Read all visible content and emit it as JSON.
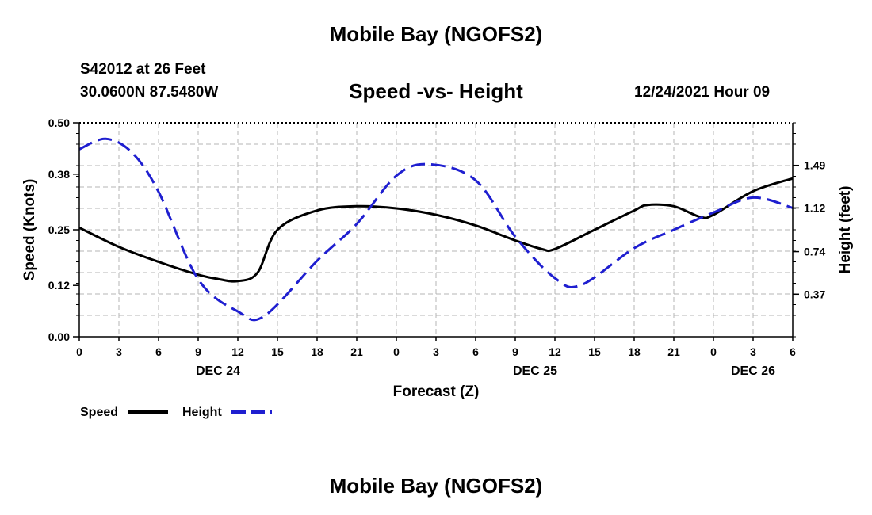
{
  "header": {
    "title": "Mobile Bay (NGOFS2)",
    "station": "S42012 at 26 Feet",
    "coords": "30.0600N  87.5480W",
    "subtitle": "Speed -vs- Height",
    "datetime": "12/24/2021 Hour 09",
    "bottom_title": "Mobile Bay (NGOFS2)"
  },
  "chart_data": {
    "type": "line",
    "title": "Speed -vs- Height",
    "xlabel": "Forecast (Z)",
    "ylabel": "Speed (Knots)",
    "y2label": "Height (feet)",
    "x_tick_labels": [
      "0",
      "3",
      "6",
      "9",
      "12",
      "15",
      "18",
      "21",
      "0",
      "3",
      "6",
      "9",
      "12",
      "15",
      "18",
      "21",
      "0",
      "3",
      "6"
    ],
    "date_labels": [
      {
        "label": "DEC 24",
        "hour": 10.5
      },
      {
        "label": "DEC 25",
        "hour": 34.5
      },
      {
        "label": "DEC 26",
        "hour": 51
      }
    ],
    "xlim": [
      0,
      54
    ],
    "ylim": [
      0,
      0.5
    ],
    "y_ticks": [
      0.0,
      0.12,
      0.25,
      0.38,
      0.5
    ],
    "y_tick_labels": [
      "0.00",
      "0.12",
      "0.25",
      "0.38",
      "0.50"
    ],
    "y2lim": [
      0,
      1.86
    ],
    "y2_ticks": [
      0.37,
      0.74,
      1.12,
      1.49
    ],
    "y2_tick_labels": [
      "0.37",
      "0.74",
      "1.12",
      "1.49"
    ],
    "grid": true,
    "legend_position": "bottom-left",
    "series": [
      {
        "name": "Speed",
        "axis": "left",
        "color": "#000000",
        "style": "solid",
        "x": [
          0,
          3,
          6,
          9,
          10.5,
          12,
          13.5,
          15,
          18,
          21,
          24,
          27,
          30,
          33,
          35,
          36,
          39,
          42,
          43,
          45,
          47,
          48,
          51,
          54
        ],
        "y": [
          0.255,
          0.21,
          0.175,
          0.145,
          0.135,
          0.13,
          0.15,
          0.25,
          0.295,
          0.305,
          0.3,
          0.285,
          0.26,
          0.225,
          0.205,
          0.205,
          0.25,
          0.295,
          0.308,
          0.305,
          0.28,
          0.285,
          0.34,
          0.37
        ]
      },
      {
        "name": "Height",
        "axis": "right",
        "color": "#1f1fd0",
        "style": "dashed",
        "x": [
          0,
          2,
          4,
          6,
          9,
          12,
          14,
          18,
          21,
          24,
          26.5,
          30,
          33,
          36,
          38,
          42,
          45,
          48,
          51,
          54
        ],
        "y": [
          1.63,
          1.72,
          1.6,
          1.26,
          0.5,
          0.22,
          0.18,
          0.66,
          0.98,
          1.4,
          1.5,
          1.36,
          0.87,
          0.51,
          0.45,
          0.77,
          0.93,
          1.08,
          1.21,
          1.12
        ]
      }
    ]
  },
  "legend": {
    "speed_label": "Speed",
    "height_label": "Height",
    "speed_color": "#000000",
    "height_color": "#1f1fd0"
  }
}
